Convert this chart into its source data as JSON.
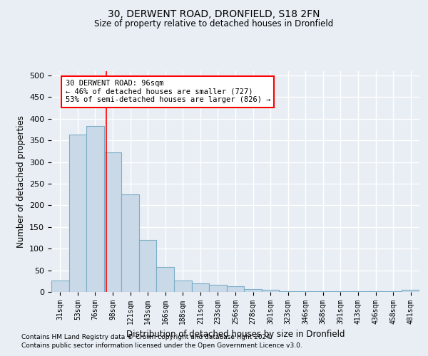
{
  "title1": "30, DERWENT ROAD, DRONFIELD, S18 2FN",
  "title2": "Size of property relative to detached houses in Dronfield",
  "xlabel": "Distribution of detached houses by size in Dronfield",
  "ylabel": "Number of detached properties",
  "bar_labels": [
    "31sqm",
    "53sqm",
    "76sqm",
    "98sqm",
    "121sqm",
    "143sqm",
    "166sqm",
    "188sqm",
    "211sqm",
    "233sqm",
    "256sqm",
    "278sqm",
    "301sqm",
    "323sqm",
    "346sqm",
    "368sqm",
    "391sqm",
    "413sqm",
    "436sqm",
    "458sqm",
    "481sqm"
  ],
  "bar_values": [
    27,
    363,
    383,
    323,
    226,
    120,
    58,
    27,
    20,
    17,
    13,
    7,
    5,
    2,
    2,
    2,
    2,
    1,
    1,
    1,
    5
  ],
  "bar_color": "#c9d9e8",
  "bar_edgecolor": "#7baec8",
  "ylim": [
    0,
    510
  ],
  "yticks": [
    0,
    50,
    100,
    150,
    200,
    250,
    300,
    350,
    400,
    450,
    500
  ],
  "red_line_x": 2.63,
  "annotation_text": "30 DERWENT ROAD: 96sqm\n← 46% of detached houses are smaller (727)\n53% of semi-detached houses are larger (826) →",
  "annotation_box_color": "white",
  "annotation_box_edgecolor": "red",
  "footnote1": "Contains HM Land Registry data © Crown copyright and database right 2024.",
  "footnote2": "Contains public sector information licensed under the Open Government Licence v3.0.",
  "background_color": "#e8eef4",
  "grid_color": "white"
}
